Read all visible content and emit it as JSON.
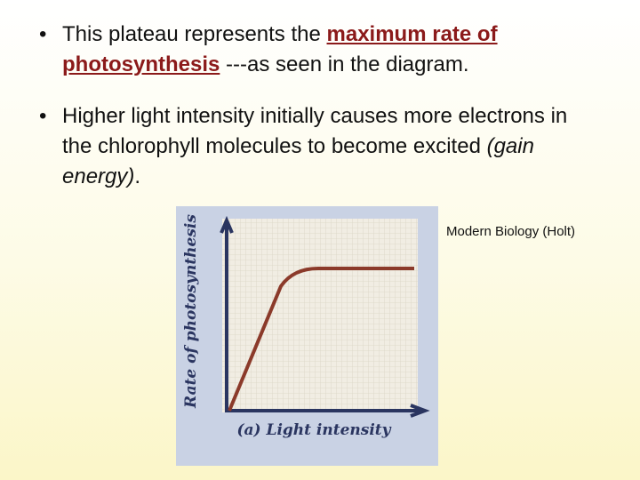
{
  "bullets": [
    {
      "parts": [
        "This plateau represents the ",
        "maximum rate of photosynthesis",
        " ---as seen in the diagram."
      ]
    },
    {
      "parts": [
        "Higher light intensity initially causes more electrons in the chlorophyll molecules to become excited ",
        "(gain energy)",
        "."
      ]
    }
  ],
  "figure": {
    "y_label": "Rate of photosynthesis",
    "x_label": "(a) Light intensity"
  },
  "citation": "Modern Biology (Holt)"
}
